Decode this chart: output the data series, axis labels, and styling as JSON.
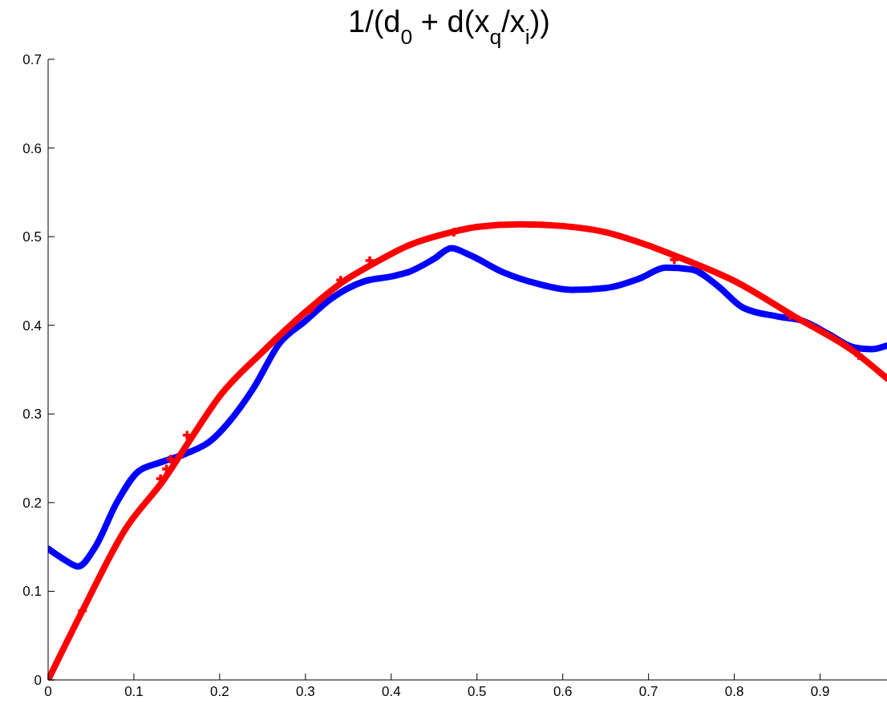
{
  "chart_data": {
    "type": "line",
    "title": "1/(d$_{0}$ + d(x$_{q}$/x$_{i}$))",
    "xlim": [
      0,
      0.978
    ],
    "xticks": [
      0,
      0.1,
      0.2,
      0.3,
      0.4,
      0.5,
      0.6,
      0.7,
      0.8,
      0.9
    ],
    "ylim": [
      0,
      0.7
    ],
    "yticks": [
      0,
      0.1,
      0.2,
      0.3,
      0.4,
      0.5,
      0.6,
      0.7
    ],
    "grid": false,
    "series": [
      {
        "color": "#0000ff",
        "marker": "none",
        "x": [
          0,
          0.02,
          0.035,
          0.055,
          0.08,
          0.105,
          0.13,
          0.16,
          0.19,
          0.21,
          0.24,
          0.27,
          0.3,
          0.33,
          0.37,
          0.4,
          0.42,
          0.45,
          0.47,
          0.49,
          0.53,
          0.57,
          0.61,
          0.65,
          0.69,
          0.72,
          0.75,
          0.78,
          0.81,
          0.85,
          0.88,
          0.91,
          0.94,
          0.96,
          0.978
        ],
        "values": [
          0.148,
          0.135,
          0.128,
          0.15,
          0.2,
          0.235,
          0.245,
          0.255,
          0.27,
          0.29,
          0.33,
          0.38,
          0.405,
          0.43,
          0.45,
          0.455,
          0.46,
          0.475,
          0.487,
          0.48,
          0.46,
          0.447,
          0.44,
          0.442,
          0.453,
          0.465,
          0.463,
          0.445,
          0.42,
          0.41,
          0.405,
          0.39,
          0.375,
          0.373,
          0.377
        ]
      },
      {
        "color": "#ff0000",
        "marker": "none",
        "x": [
          0,
          0.04,
          0.09,
          0.135,
          0.165,
          0.2,
          0.25,
          0.3,
          0.345,
          0.38,
          0.42,
          0.47,
          0.5,
          0.55,
          0.6,
          0.65,
          0.7,
          0.74,
          0.8,
          0.87,
          0.94,
          0.978
        ],
        "values": [
          0,
          0.078,
          0.17,
          0.226,
          0.27,
          0.32,
          0.37,
          0.415,
          0.45,
          0.47,
          0.49,
          0.505,
          0.511,
          0.514,
          0.512,
          0.505,
          0.49,
          0.475,
          0.45,
          0.41,
          0.37,
          0.34
        ]
      },
      {
        "type": "scatter",
        "color": "#ff0000",
        "marker": "cross",
        "x": [
          0.04,
          0.131,
          0.138,
          0.143,
          0.162,
          0.305,
          0.341,
          0.375,
          0.473,
          0.73,
          0.865,
          0.945
        ],
        "values": [
          0.078,
          0.227,
          0.238,
          0.249,
          0.276,
          0.417,
          0.451,
          0.473,
          0.505,
          0.474,
          0.411,
          0.366
        ]
      }
    ]
  }
}
